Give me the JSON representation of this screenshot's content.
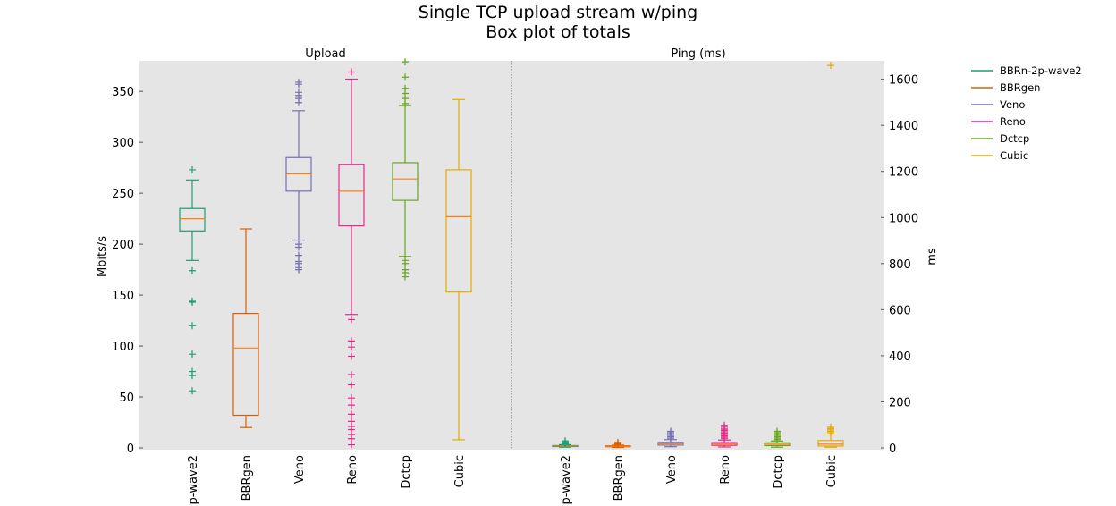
{
  "chart_data": {
    "type": "box",
    "title": "Single TCP upload stream w/ping",
    "subtitle": "Box plot of totals",
    "panels": [
      {
        "name": "Upload",
        "ylabel": "Mbits/s",
        "axis": "left",
        "ylim": [
          0,
          380
        ],
        "yticks": [
          0,
          50,
          100,
          150,
          200,
          250,
          300,
          350
        ]
      },
      {
        "name": "Ping (ms)",
        "ylabel": "ms",
        "axis": "right",
        "ylim": [
          0,
          1680
        ],
        "yticks": [
          0,
          200,
          400,
          600,
          800,
          1000,
          1200,
          1400,
          1600
        ]
      }
    ],
    "categories": [
      "BBRn-2p-wave2",
      "BBRgen",
      "Veno",
      "Reno",
      "Dctcp",
      "Cubic"
    ],
    "tick_labels": [
      "p-wave2",
      "BBRgen",
      "Veno",
      "Reno",
      "Dctcp",
      "Cubic"
    ],
    "legend": {
      "position": "outside-right",
      "entries": [
        "BBRn-2p-wave2",
        "BBRgen",
        "Veno",
        "Reno",
        "Dctcp",
        "Cubic"
      ]
    },
    "series": [
      {
        "name": "BBRn-2p-wave2",
        "color": "#1b9e77",
        "upload": {
          "whislo": 184,
          "q1": 213,
          "med": 225,
          "q3": 235,
          "whishi": 263,
          "fliers": [
            273,
            174,
            144,
            143,
            120,
            92,
            75,
            71,
            56
          ]
        },
        "ping": {
          "whislo": 3,
          "q1": 6,
          "med": 8,
          "q3": 10,
          "whishi": 14,
          "fliers": [
            18,
            22,
            26,
            30
          ]
        }
      },
      {
        "name": "BBRgen",
        "color": "#d95f02",
        "upload": {
          "whislo": 20,
          "q1": 32,
          "med": 98,
          "q3": 132,
          "whishi": 215,
          "fliers": []
        },
        "ping": {
          "whislo": 2,
          "q1": 5,
          "med": 7,
          "q3": 9,
          "whishi": 12,
          "fliers": [
            16,
            20,
            24
          ]
        }
      },
      {
        "name": "Veno",
        "color": "#7570b3",
        "upload": {
          "whislo": 204,
          "q1": 252,
          "med": 269,
          "q3": 285,
          "whishi": 331,
          "fliers": [
            359,
            357,
            349,
            346,
            343,
            339,
            200,
            197,
            189,
            183,
            181,
            177,
            175
          ]
        },
        "ping": {
          "whislo": 5,
          "q1": 12,
          "med": 18,
          "q3": 24,
          "whishi": 36,
          "fliers": [
            42,
            48,
            54,
            60,
            66,
            72
          ]
        }
      },
      {
        "name": "Reno",
        "color": "#e7298a",
        "upload": {
          "whislo": 131,
          "q1": 218,
          "med": 252,
          "q3": 278,
          "whishi": 362,
          "fliers": [
            369,
            126,
            105,
            99,
            90,
            72,
            62,
            49,
            42,
            33,
            26,
            21,
            18,
            13,
            9,
            3
          ]
        },
        "ping": {
          "whislo": 4,
          "q1": 11,
          "med": 17,
          "q3": 23,
          "whishi": 34,
          "fliers": [
            40,
            46,
            52,
            58,
            64,
            70,
            76,
            82,
            90,
            98
          ]
        }
      },
      {
        "name": "Dctcp",
        "color": "#66a61e",
        "upload": {
          "whislo": 188,
          "q1": 243,
          "med": 264,
          "q3": 280,
          "whishi": 336,
          "fliers": [
            379,
            364,
            353,
            348,
            343,
            338,
            184,
            181,
            175,
            172,
            168
          ]
        },
        "ping": {
          "whislo": 3,
          "q1": 10,
          "med": 16,
          "q3": 22,
          "whishi": 30,
          "fliers": [
            36,
            42,
            48,
            54,
            60,
            66,
            72
          ]
        }
      },
      {
        "name": "Cubic",
        "color": "#e6ab02",
        "upload": {
          "whislo": 8,
          "q1": 153,
          "med": 227,
          "q3": 273,
          "whishi": 342,
          "fliers": []
        },
        "ping": {
          "whislo": 3,
          "q1": 8,
          "med": 16,
          "q3": 32,
          "whishi": 60,
          "fliers": [
            66,
            72,
            78,
            84,
            90,
            1660
          ]
        }
      }
    ]
  }
}
